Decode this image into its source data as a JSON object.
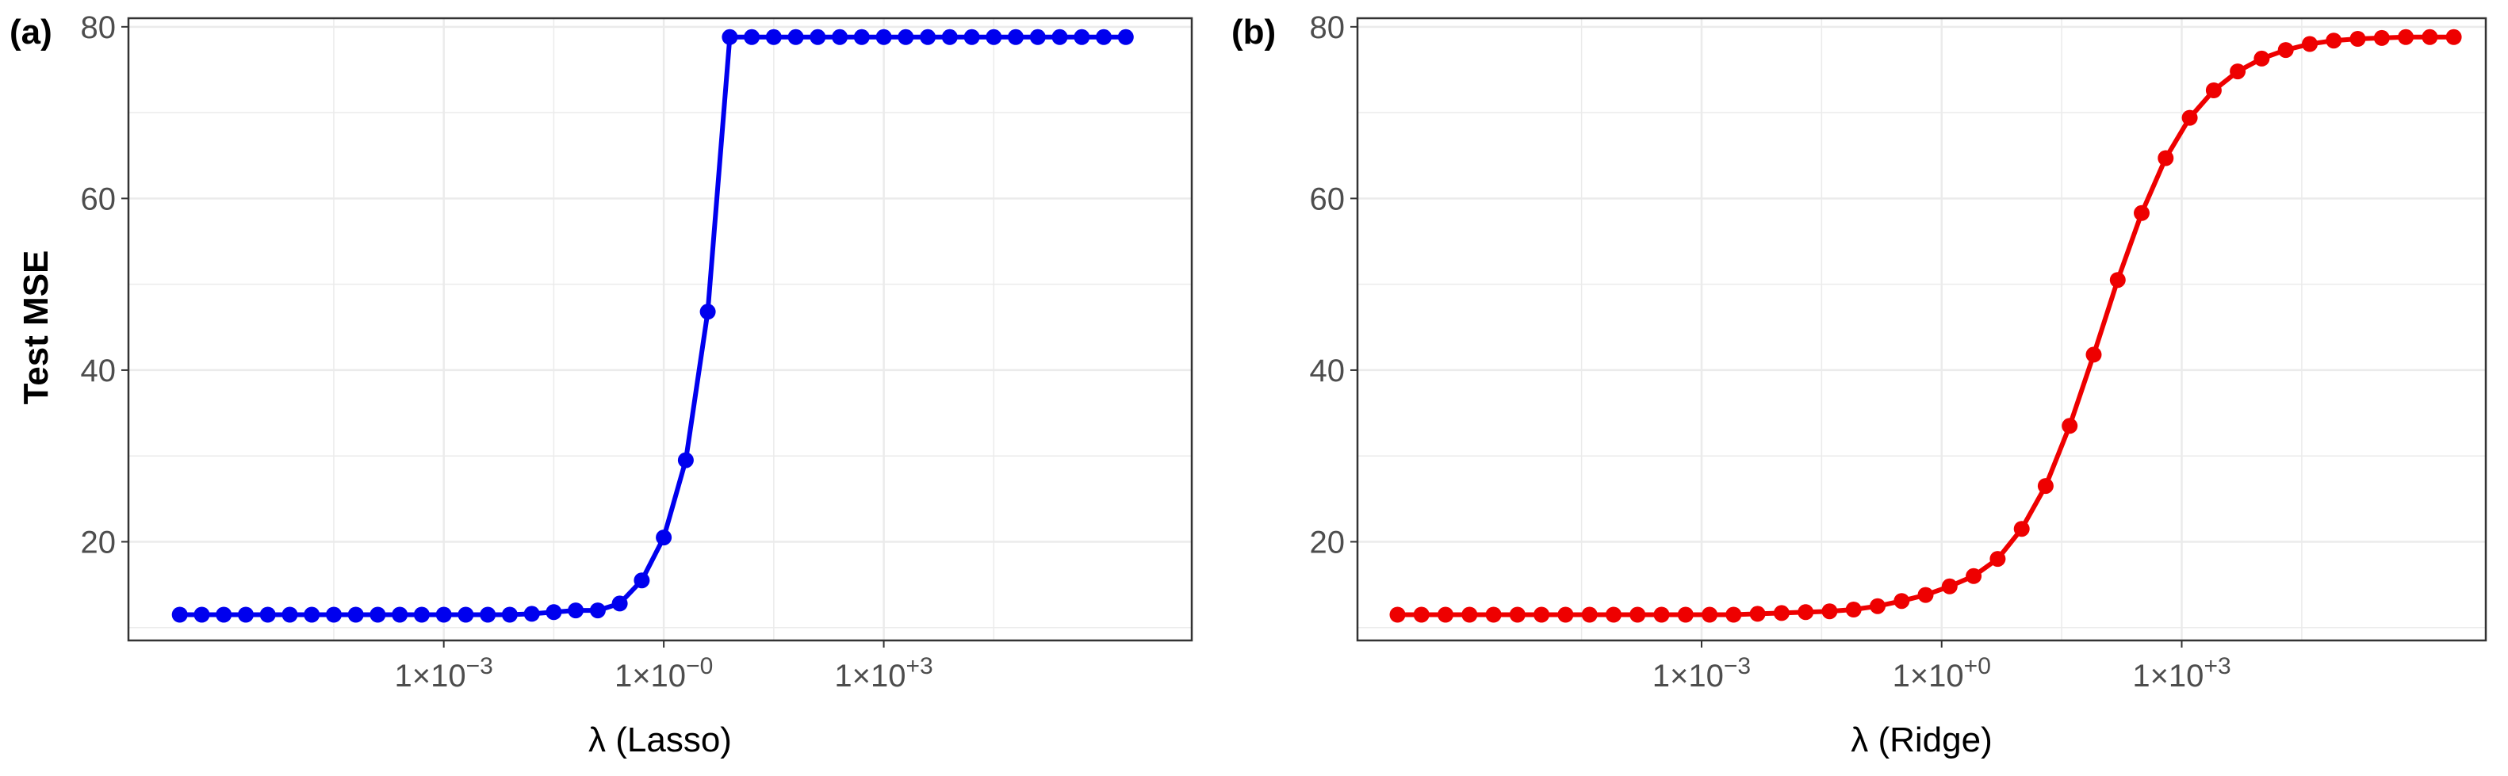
{
  "ylabel": "Test MSE",
  "colors": {
    "grid": "#ebebeb",
    "border": "#333333",
    "background": "#ffffff"
  },
  "chart_data": [
    {
      "type": "line",
      "panel_label": "(a)",
      "xlabel": "λ (Lasso)",
      "ylabel": "Test MSE",
      "xscale": "log",
      "xlim_log10": [
        -7.3,
        7.2
      ],
      "ylim": [
        8.5,
        81
      ],
      "yticks": [
        20,
        40,
        60,
        80
      ],
      "xticks": [
        {
          "log10": -3,
          "label": "1×10",
          "sup": "−3"
        },
        {
          "log10": 0,
          "label": "1×10",
          "sup": "−0"
        },
        {
          "log10": 3,
          "label": "1×10",
          "sup": "+3"
        }
      ],
      "grid": true,
      "series": [
        {
          "color": "#0000ee",
          "x_log10": [
            -6.6,
            -6.3,
            -6.0,
            -5.7,
            -5.4,
            -5.1,
            -4.8,
            -4.5,
            -4.2,
            -3.9,
            -3.6,
            -3.3,
            -3.0,
            -2.7,
            -2.4,
            -2.1,
            -1.8,
            -1.5,
            -1.2,
            -0.9,
            -0.6,
            -0.3,
            0.0,
            0.3,
            0.6,
            0.9,
            1.2,
            1.5,
            1.8,
            2.1,
            2.4,
            2.7,
            3.0,
            3.3,
            3.6,
            3.9,
            4.2,
            4.5,
            4.8,
            5.1,
            5.4,
            5.7,
            6.0,
            6.3
          ],
          "y": [
            11.5,
            11.5,
            11.5,
            11.5,
            11.5,
            11.5,
            11.5,
            11.5,
            11.5,
            11.5,
            11.5,
            11.5,
            11.5,
            11.5,
            11.5,
            11.5,
            11.6,
            11.8,
            12.0,
            12.0,
            12.8,
            15.5,
            20.5,
            29.5,
            46.8,
            78.8,
            78.8,
            78.8,
            78.8,
            78.8,
            78.8,
            78.8,
            78.8,
            78.8,
            78.8,
            78.8,
            78.8,
            78.8,
            78.8,
            78.8,
            78.8,
            78.8,
            78.8,
            78.8
          ]
        }
      ]
    },
    {
      "type": "line",
      "panel_label": "(b)",
      "xlabel": "λ (Ridge)",
      "ylabel": "",
      "xscale": "log",
      "xlim_log10": [
        -7.3,
        6.8
      ],
      "ylim": [
        8.5,
        81
      ],
      "yticks": [
        20,
        40,
        60,
        80
      ],
      "xticks": [
        {
          "log10": -3,
          "label": "1×10",
          "sup": "−3"
        },
        {
          "log10": 0,
          "label": "1×10",
          "sup": "+0"
        },
        {
          "log10": 3,
          "label": "1×10",
          "sup": "+3"
        }
      ],
      "grid": true,
      "series": [
        {
          "color": "#ee0000",
          "x_log10": [
            -6.8,
            -6.5,
            -6.2,
            -5.9,
            -5.6,
            -5.3,
            -5.0,
            -4.7,
            -4.4,
            -4.1,
            -3.8,
            -3.5,
            -3.2,
            -2.9,
            -2.6,
            -2.3,
            -2.0,
            -1.7,
            -1.4,
            -1.1,
            -0.8,
            -0.5,
            -0.2,
            0.1,
            0.4,
            0.7,
            1.0,
            1.3,
            1.6,
            1.9,
            2.2,
            2.5,
            2.8,
            3.1,
            3.4,
            3.7,
            4.0,
            4.3,
            4.6,
            4.9,
            5.2,
            5.5,
            5.8,
            6.1,
            6.4
          ],
          "y": [
            11.5,
            11.5,
            11.5,
            11.5,
            11.5,
            11.5,
            11.5,
            11.5,
            11.5,
            11.5,
            11.5,
            11.5,
            11.5,
            11.5,
            11.5,
            11.6,
            11.7,
            11.8,
            11.9,
            12.1,
            12.5,
            13.1,
            13.8,
            14.8,
            16.0,
            18.0,
            21.5,
            26.5,
            33.5,
            41.8,
            50.5,
            58.3,
            64.7,
            69.4,
            72.6,
            74.8,
            76.3,
            77.3,
            78.0,
            78.4,
            78.6,
            78.7,
            78.8,
            78.8,
            78.8
          ]
        }
      ]
    }
  ]
}
